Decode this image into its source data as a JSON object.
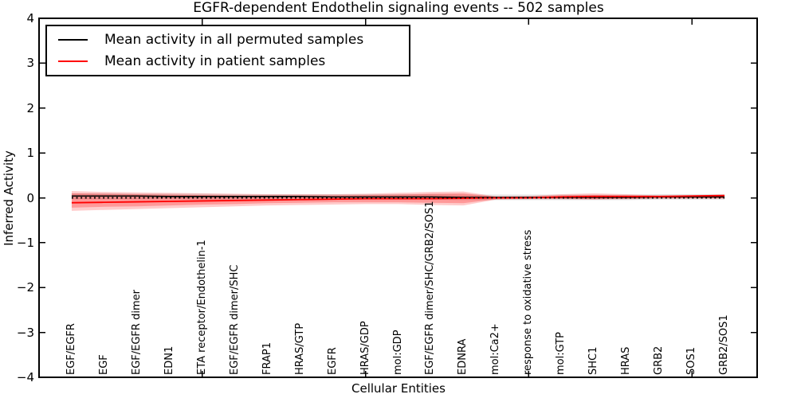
{
  "accent_colors": {
    "patient": "#ff0000",
    "permuted": "#000000",
    "patient_band": "#ff0000",
    "permuted_band": "#bbbbbb"
  },
  "chart_data": {
    "type": "line",
    "title": "EGFR-dependent Endothelin signaling events -- 502 samples",
    "xlabel": "Cellular Entities",
    "ylabel": "Inferred Activity",
    "ylim": [
      -4,
      4
    ],
    "xlim": [
      0,
      22
    ],
    "grid": false,
    "legend_position": "upper left",
    "y_tick_labels": [
      "4",
      "3",
      "2",
      "1",
      "0",
      "−1",
      "−2",
      "−3",
      "−4"
    ],
    "y_tick_values": [
      4,
      3,
      2,
      1,
      0,
      -1,
      -2,
      -3,
      -4
    ],
    "x_tick_positions": [
      5,
      10,
      15,
      20
    ],
    "categories": [
      "EGF/EGFR",
      "EGF",
      "EGF/EGFR dimer",
      "EDN1",
      "ETA receptor/Endothelin-1",
      "EGF/EGFR dimer/SHC",
      "FRAP1",
      "HRAS/GTP",
      "EGFR",
      "HRAS/GDP",
      "mol:GDP",
      "EGF/EGFR dimer/SHC/GRB2/SOS1",
      "EDNRA",
      "mol:Ca2+",
      "response to oxidative stress",
      "mol:GTP",
      "SHC1",
      "HRAS",
      "GRB2",
      "SOS1",
      "GRB2/SOS1"
    ],
    "zero_line": {
      "y": 0,
      "style": "dotted",
      "color": "#000000"
    },
    "series": [
      {
        "name": "Mean activity in all permuted samples",
        "color": "#000000",
        "values": [
          0.04,
          0.04,
          0.04,
          0.03,
          0.03,
          0.03,
          0.03,
          0.03,
          0.02,
          0.02,
          0.02,
          0.02,
          0.01,
          0.01,
          0.01,
          0.01,
          0.01,
          0.01,
          0.02,
          0.02,
          0.02
        ],
        "band": {
          "fill": "#000000",
          "opacity": 0.12,
          "top": [
            0.1,
            0.1,
            0.09,
            0.09,
            0.09,
            0.08,
            0.08,
            0.08,
            0.08,
            0.08,
            0.08,
            0.08,
            0.07,
            0.07,
            0.07,
            0.07,
            0.07,
            0.07,
            0.08,
            0.08,
            0.08
          ],
          "bottom": [
            -0.03,
            -0.03,
            -0.03,
            -0.03,
            -0.04,
            -0.04,
            -0.04,
            -0.04,
            -0.04,
            -0.04,
            -0.04,
            -0.04,
            -0.05,
            -0.05,
            -0.05,
            -0.05,
            -0.05,
            -0.05,
            -0.04,
            -0.04,
            -0.04
          ]
        }
      },
      {
        "name": "Mean activity in patient samples",
        "color": "#ff0000",
        "values": [
          -0.11,
          -0.1,
          -0.09,
          -0.08,
          -0.07,
          -0.06,
          -0.05,
          -0.04,
          -0.03,
          -0.02,
          -0.02,
          -0.02,
          -0.01,
          0.0,
          0.0,
          0.02,
          0.03,
          0.03,
          0.03,
          0.04,
          0.05
        ],
        "band_outer": {
          "fill": "#ff0000",
          "opacity": 0.2,
          "top": [
            0.15,
            0.13,
            0.12,
            0.11,
            0.1,
            0.09,
            0.08,
            0.08,
            0.08,
            0.09,
            0.11,
            0.13,
            0.14,
            0.03,
            0.04,
            0.08,
            0.1,
            0.08,
            0.05,
            0.06,
            0.07
          ],
          "bottom": [
            -0.29,
            -0.27,
            -0.25,
            -0.23,
            -0.21,
            -0.19,
            -0.17,
            -0.16,
            -0.15,
            -0.14,
            -0.14,
            -0.16,
            -0.17,
            -0.04,
            -0.03,
            -0.03,
            -0.04,
            -0.03,
            -0.02,
            -0.02,
            -0.02
          ]
        },
        "band_inner": {
          "fill": "#ff0000",
          "opacity": 0.25,
          "top": [
            0.1,
            0.09,
            0.08,
            0.07,
            0.06,
            0.05,
            0.05,
            0.05,
            0.05,
            0.06,
            0.07,
            0.09,
            0.1,
            0.02,
            0.02,
            0.05,
            0.06,
            0.05,
            0.03,
            0.04,
            0.05
          ],
          "bottom": [
            -0.22,
            -0.2,
            -0.19,
            -0.17,
            -0.15,
            -0.14,
            -0.12,
            -0.11,
            -0.1,
            -0.1,
            -0.1,
            -0.11,
            -0.12,
            -0.03,
            -0.02,
            -0.02,
            -0.03,
            -0.02,
            -0.01,
            -0.01,
            -0.01
          ]
        }
      }
    ]
  }
}
